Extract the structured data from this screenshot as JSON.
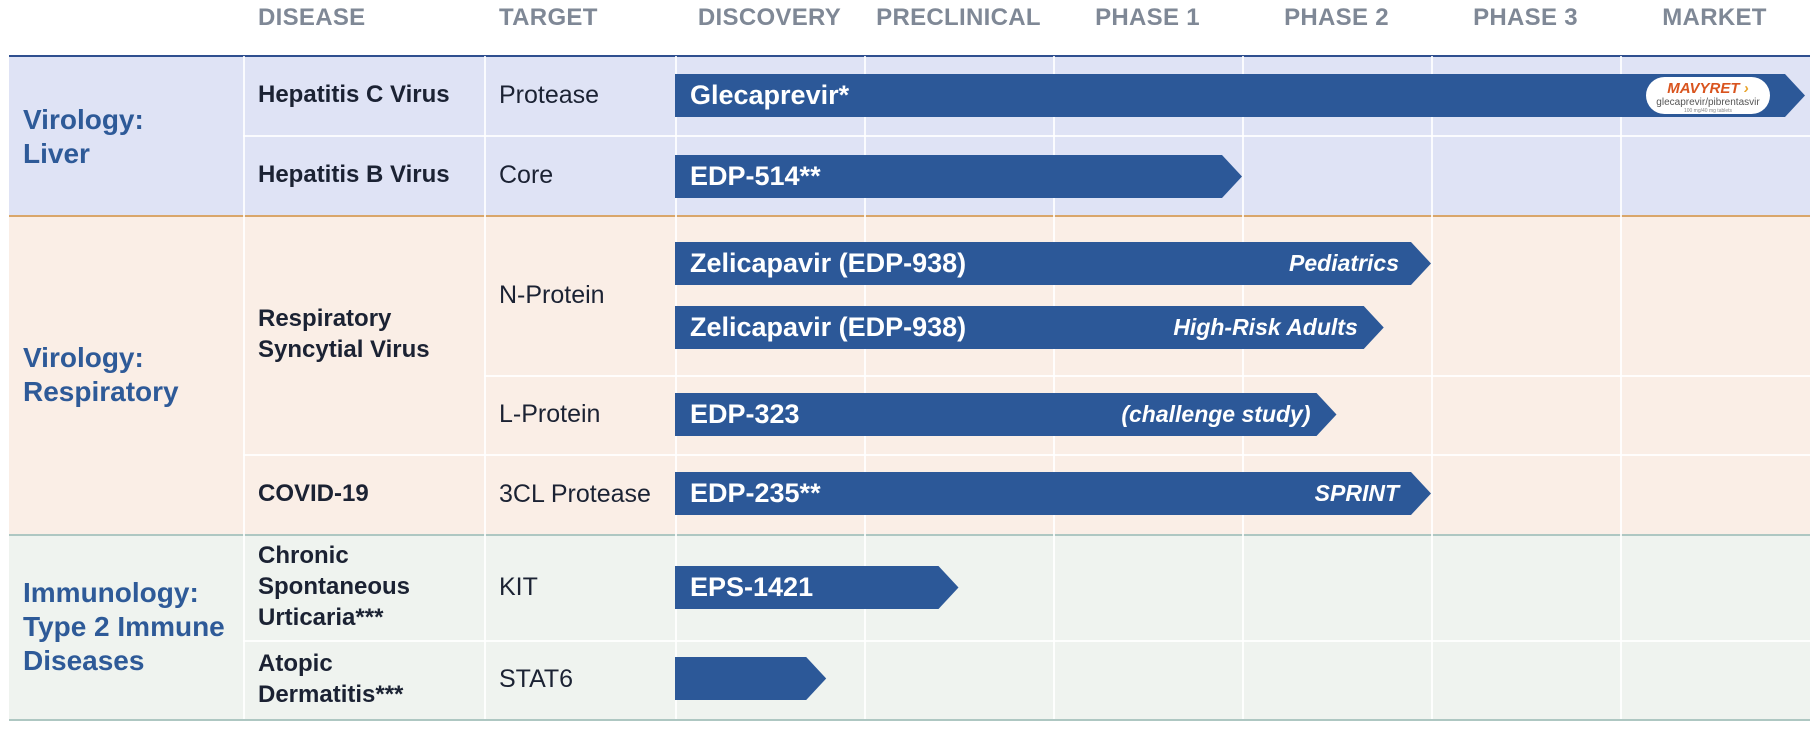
{
  "chart_data": {
    "type": "table",
    "title": "",
    "colors": {
      "bar": "#2c5898",
      "liver_band": "#dfe3f5",
      "respiratory_band": "#faeee6",
      "immunology_band": "#eff3ef",
      "liver_rule": "#2f4f8f",
      "respiratory_rule": "#d9a66a",
      "immunology_rule": "#aec7c2",
      "category_text": "#2e5a98"
    },
    "columns": {
      "disease": "DISEASE",
      "target": "TARGET",
      "stages": [
        "DISCOVERY",
        "PRECLINICAL",
        "PHASE 1",
        "PHASE 2",
        "PHASE 3",
        "MARKET"
      ]
    },
    "categories": [
      {
        "label": "Virology: Liver",
        "lines": [
          "Virology:",
          "Liver"
        ]
      },
      {
        "label": "Virology: Respiratory",
        "lines": [
          "Virology:",
          "Respiratory"
        ]
      },
      {
        "label": "Immunology: Type 2 Immune Diseases",
        "lines": [
          "Immunology:",
          "Type 2 Immune",
          "Diseases"
        ]
      }
    ],
    "diseases": [
      {
        "lines": [
          "Hepatitis C Virus"
        ]
      },
      {
        "lines": [
          "Hepatitis B Virus"
        ]
      },
      {
        "lines": [
          "Respiratory",
          "Syncytial Virus"
        ]
      },
      {
        "lines": [
          "COVID-19"
        ]
      },
      {
        "lines": [
          "Chronic",
          "Spontaneous",
          "Urticaria***"
        ]
      },
      {
        "lines": [
          "Atopic",
          "Dermatitis***"
        ]
      }
    ],
    "targets": [
      "Protease",
      "Core",
      "N-Protein",
      "L-Protein",
      "3CL Protease",
      "KIT",
      "STAT6"
    ],
    "programs": [
      {
        "name": "Glecaprevir*",
        "note": "",
        "category": "Virology: Liver",
        "disease": "Hepatitis C Virus",
        "target": "Protease",
        "progress_stage": 6.0,
        "marketed_logo": {
          "brand": "MAVYRET",
          "generic": "glecaprevir/pibrentasvir",
          "fine_print": "100 mg/40 mg tablets"
        }
      },
      {
        "name": "EDP-514**",
        "note": "",
        "category": "Virology: Liver",
        "disease": "Hepatitis B Virus",
        "target": "Core",
        "progress_stage": 3.0
      },
      {
        "name": "Zelicapavir (EDP-938)",
        "note": "Pediatrics",
        "category": "Virology: Respiratory",
        "disease": "Respiratory Syncytial Virus",
        "target": "N-Protein",
        "progress_stage": 4.0
      },
      {
        "name": "Zelicapavir (EDP-938)",
        "note": "High-Risk Adults",
        "category": "Virology: Respiratory",
        "disease": "Respiratory Syncytial Virus",
        "target": "N-Protein",
        "progress_stage": 3.75
      },
      {
        "name": "EDP-323",
        "note": "(challenge study)",
        "category": "Virology: Respiratory",
        "disease": "Respiratory Syncytial Virus",
        "target": "L-Protein",
        "progress_stage": 3.5
      },
      {
        "name": "EDP-235**",
        "note": "SPRINT",
        "category": "Virology: Respiratory",
        "disease": "COVID-19",
        "target": "3CL Protease",
        "progress_stage": 4.0
      },
      {
        "name": "EPS-1421",
        "note": "",
        "category": "Immunology: Type 2 Immune Diseases",
        "disease": "Chronic Spontaneous Urticaria***",
        "target": "KIT",
        "progress_stage": 1.5
      },
      {
        "name": "",
        "note": "",
        "category": "Immunology: Type 2 Immune Diseases",
        "disease": "Atopic Dermatitis***",
        "target": "STAT6",
        "progress_stage": 0.8
      }
    ]
  }
}
